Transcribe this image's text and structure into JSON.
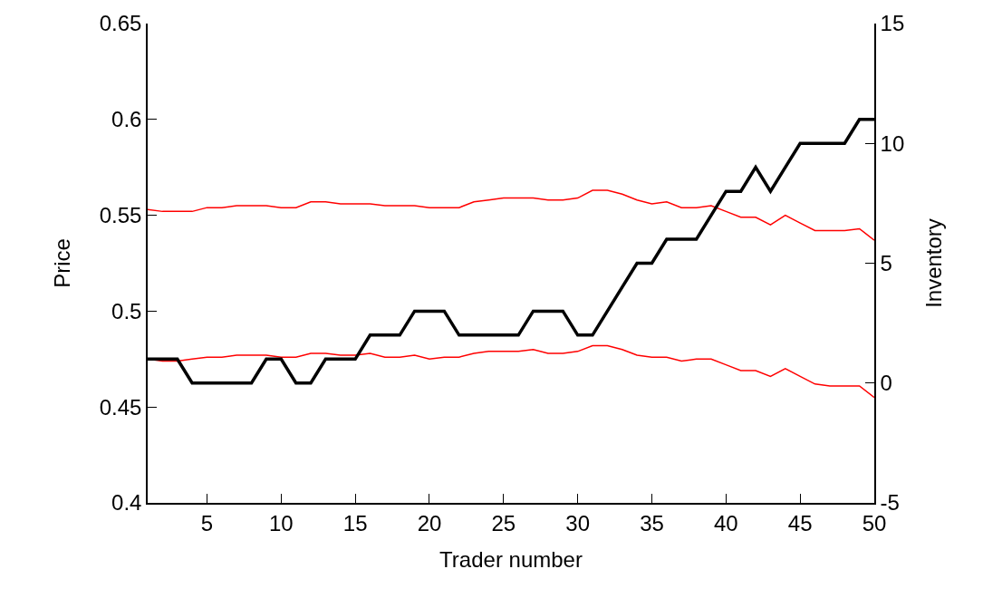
{
  "chart_data": {
    "type": "line",
    "xlabel": "Trader number",
    "ylabel": "Price",
    "y2label": "Inventory",
    "x": [
      1,
      2,
      3,
      4,
      5,
      6,
      7,
      8,
      9,
      10,
      11,
      12,
      13,
      14,
      15,
      16,
      17,
      18,
      19,
      20,
      21,
      22,
      23,
      24,
      25,
      26,
      27,
      28,
      29,
      30,
      31,
      32,
      33,
      34,
      35,
      36,
      37,
      38,
      39,
      40,
      41,
      42,
      43,
      44,
      45,
      46,
      47,
      48,
      49,
      50
    ],
    "series": [
      {
        "color": "#ff0000",
        "values": [
          0.553,
          0.552,
          0.552,
          0.552,
          0.554,
          0.554,
          0.555,
          0.555,
          0.555,
          0.554,
          0.554,
          0.557,
          0.557,
          0.556,
          0.556,
          0.556,
          0.555,
          0.555,
          0.555,
          0.554,
          0.554,
          0.554,
          0.557,
          0.558,
          0.559,
          0.559,
          0.559,
          0.558,
          0.558,
          0.559,
          0.563,
          0.563,
          0.561,
          0.558,
          0.556,
          0.557,
          0.554,
          0.554,
          0.555,
          0.552,
          0.549,
          0.549,
          0.545,
          0.55,
          0.546,
          0.542,
          0.542,
          0.542,
          0.543,
          0.537
        ]
      },
      {
        "color": "#ff0000",
        "values": [
          0.475,
          0.474,
          0.474,
          0.475,
          0.476,
          0.476,
          0.477,
          0.477,
          0.477,
          0.476,
          0.476,
          0.478,
          0.478,
          0.477,
          0.477,
          0.478,
          0.476,
          0.476,
          0.477,
          0.475,
          0.476,
          0.476,
          0.478,
          0.479,
          0.479,
          0.479,
          0.48,
          0.478,
          0.478,
          0.479,
          0.482,
          0.482,
          0.48,
          0.477,
          0.476,
          0.476,
          0.474,
          0.475,
          0.475,
          0.472,
          0.469,
          0.469,
          0.466,
          0.47,
          0.466,
          0.462,
          0.461,
          0.461,
          0.461,
          0.455
        ]
      },
      {
        "color": "#000000",
        "axis": "y2",
        "values": [
          1,
          1,
          1,
          0,
          0,
          0,
          0,
          0,
          1,
          1,
          0,
          0,
          1,
          1,
          1,
          2,
          2,
          2,
          3,
          3,
          3,
          2,
          2,
          2,
          2,
          2,
          3,
          3,
          3,
          2,
          2,
          3,
          4,
          5,
          5,
          6,
          6,
          6,
          7,
          8,
          8,
          9,
          8,
          9,
          10,
          10,
          10,
          10,
          11,
          11
        ]
      }
    ],
    "xlim": [
      1,
      50
    ],
    "xticks": [
      5,
      10,
      15,
      20,
      25,
      30,
      35,
      40,
      45,
      50
    ],
    "ylim": [
      0.4,
      0.65
    ],
    "yticks": [
      0.4,
      0.45,
      0.5,
      0.55,
      0.6,
      0.65
    ],
    "y2lim": [
      -5,
      15
    ],
    "y2ticks": [
      -5,
      0,
      5,
      10,
      15
    ],
    "marker": "none",
    "line_style": "solid"
  }
}
